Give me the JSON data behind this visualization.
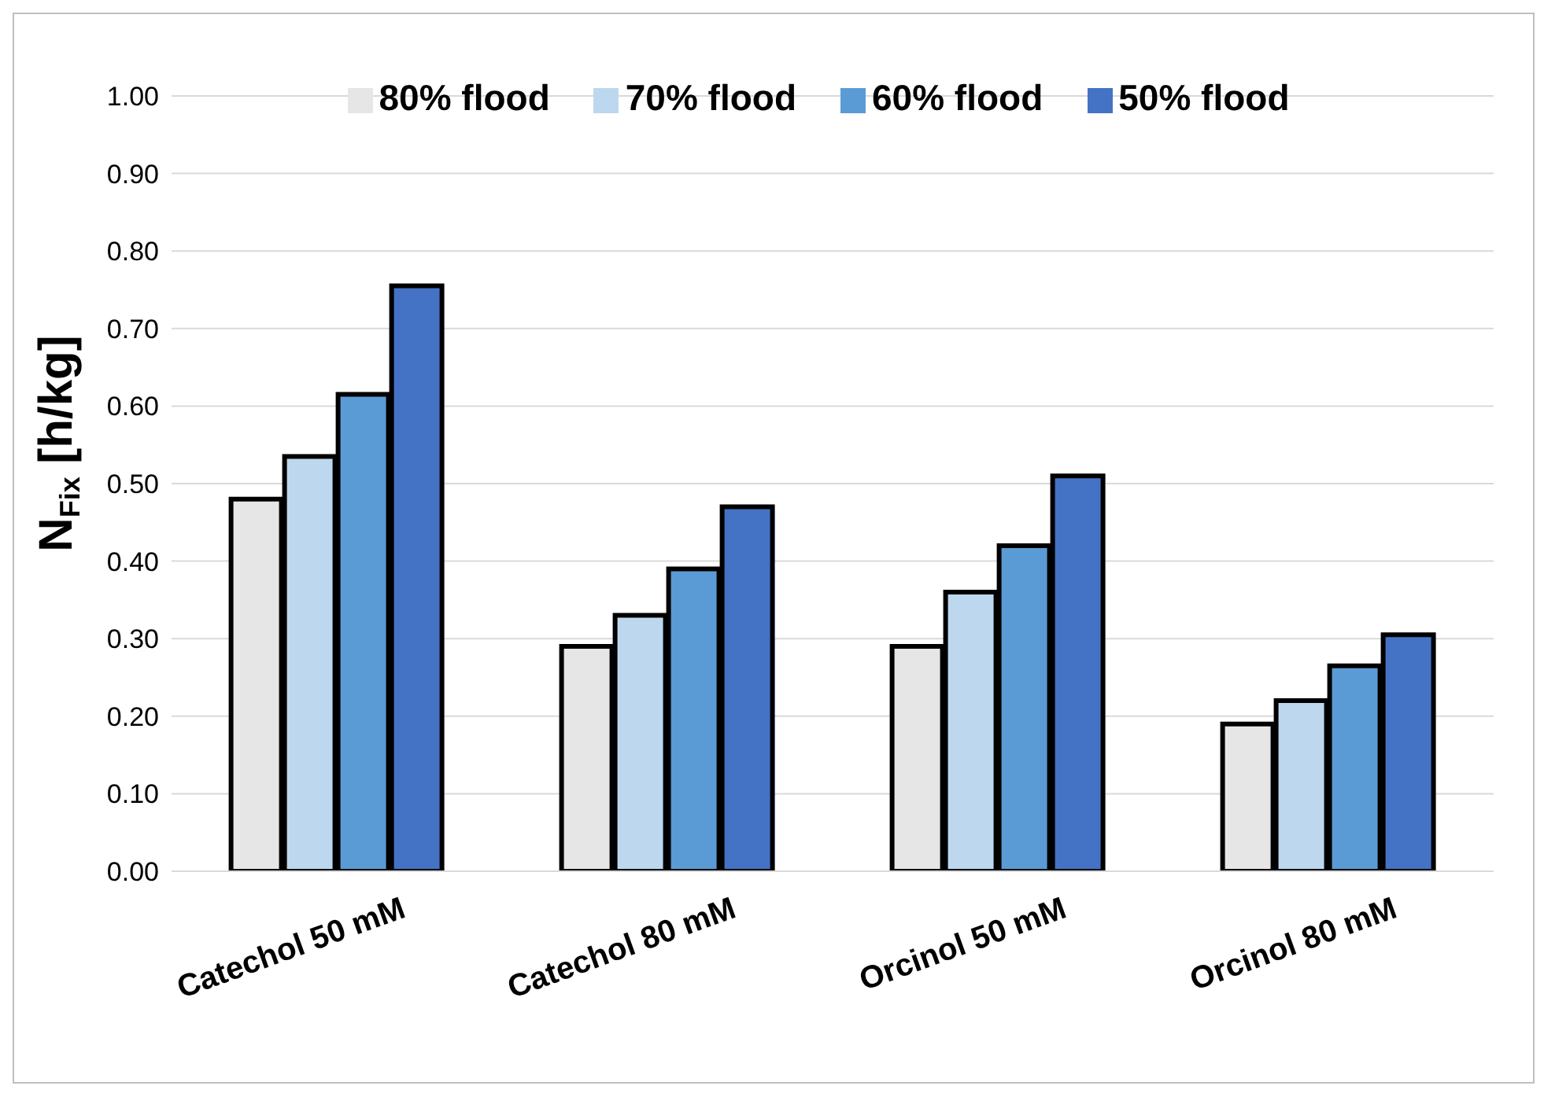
{
  "chart_data": {
    "type": "bar",
    "ylabel": "N$_{Fix}$ [h/kg]",
    "categories": [
      "Catechol 50 mM",
      "Catechol 80 mM",
      "Orcinol 50 mM",
      "Orcinol 80 mM"
    ],
    "series": [
      {
        "name": "80% flood",
        "color": "#e6e6e6",
        "values": [
          0.48,
          0.29,
          0.29,
          0.19
        ]
      },
      {
        "name": "70% flood",
        "color": "#bdd7ee",
        "values": [
          0.535,
          0.33,
          0.36,
          0.22
        ]
      },
      {
        "name": "60% flood",
        "color": "#5b9bd5",
        "values": [
          0.615,
          0.39,
          0.42,
          0.265
        ]
      },
      {
        "name": "50% flood",
        "color": "#4472c4",
        "values": [
          0.755,
          0.47,
          0.51,
          0.305
        ]
      }
    ],
    "ylim": [
      0,
      1
    ],
    "yticks": [
      {
        "value": 0,
        "label": "0.00"
      },
      {
        "value": 0.1,
        "label": "0.10"
      },
      {
        "value": 0.2,
        "label": "0.20"
      },
      {
        "value": 0.3,
        "label": "0.30"
      },
      {
        "value": 0.4,
        "label": "0.40"
      },
      {
        "value": 0.5,
        "label": "0.50"
      },
      {
        "value": 0.6,
        "label": "0.60"
      },
      {
        "value": 0.7,
        "label": "0.70"
      },
      {
        "value": 0.8,
        "label": "0.80"
      },
      {
        "value": 0.9,
        "label": "0.90"
      },
      {
        "value": 1,
        "label": "1.00"
      }
    ],
    "grid": "y",
    "legend": "top"
  }
}
